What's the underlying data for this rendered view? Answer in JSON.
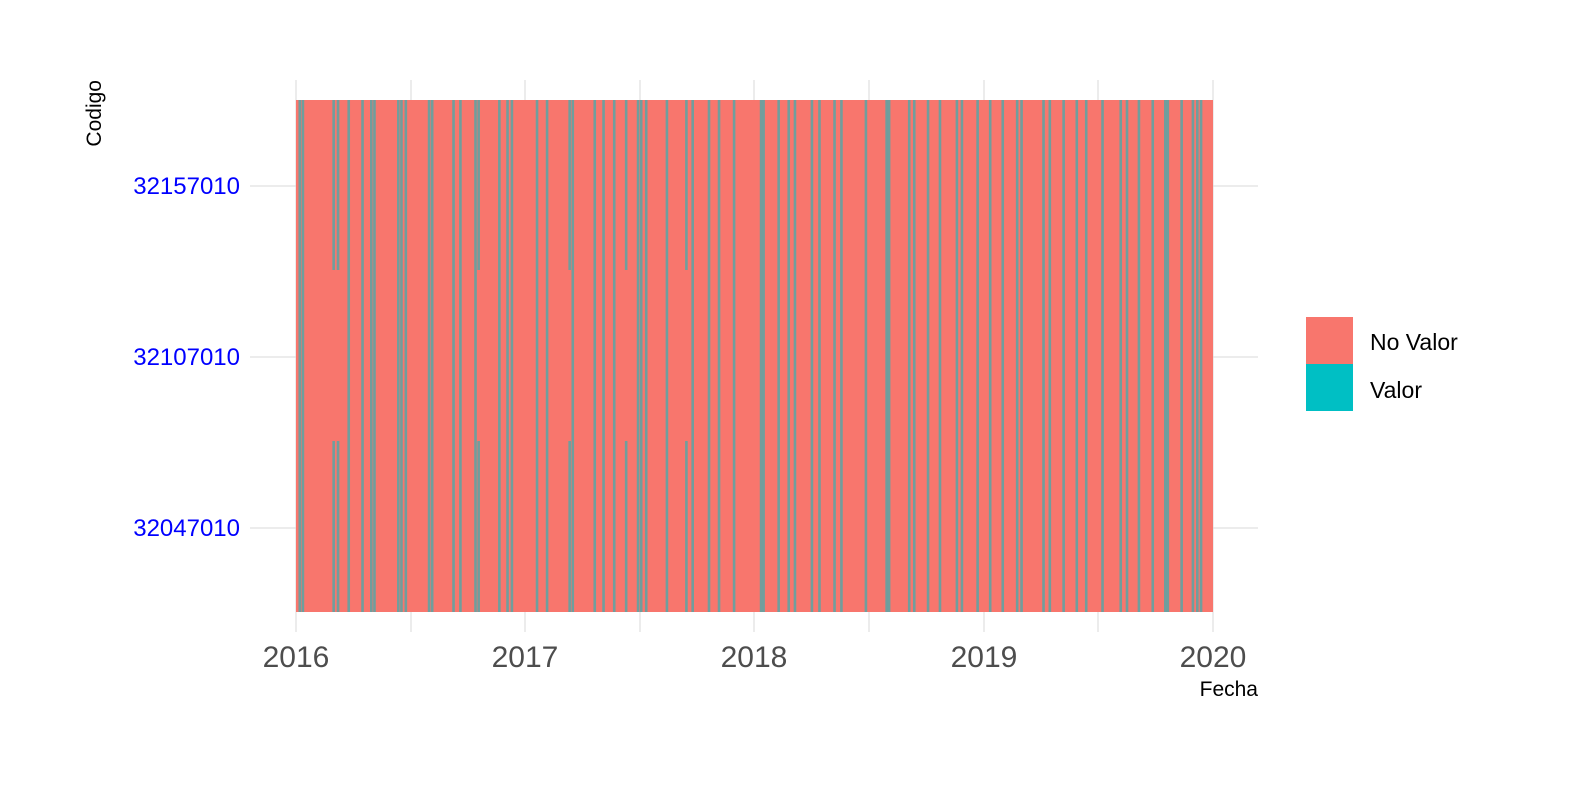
{
  "chart_data": {
    "type": "heatmap",
    "xlabel": "Fecha",
    "ylabel": "Codigo",
    "x_ticks": [
      "2016",
      "2017",
      "2018",
      "2019",
      "2020"
    ],
    "xlim": [
      "2016-01-01",
      "2020-01-01"
    ],
    "categories": [
      "32047010",
      "32107010",
      "32157010"
    ],
    "legend": {
      "position": "right",
      "entries": [
        {
          "label": "No Valor",
          "color": "#F8766D"
        },
        {
          "label": "Valor",
          "color": "#00BFC4"
        }
      ]
    },
    "colors": {
      "missing": "#F8766D",
      "present": "#00BFC4",
      "y_tick_labels": "#0000FF",
      "x_tick_labels": "#4D4D4D",
      "grid": "#D9D9D9"
    },
    "grid": true,
    "present_dates_all_codes": [
      "2016-01-07",
      "2016-01-12",
      "2016-03-25",
      "2016-04-16",
      "2016-04-30",
      "2016-05-05",
      "2016-06-12",
      "2016-06-17",
      "2016-06-24",
      "2016-07-31",
      "2016-08-05",
      "2016-09-08",
      "2016-09-19",
      "2016-10-13",
      "2016-11-20",
      "2016-12-03",
      "2016-12-10",
      "2017-01-19",
      "2017-02-04",
      "2017-03-17",
      "2017-04-21",
      "2017-05-05",
      "2017-05-22",
      "2017-06-29",
      "2017-07-04",
      "2017-07-12",
      "2017-08-14",
      "2017-09-24",
      "2017-10-20",
      "2017-11-05",
      "2017-11-29",
      "2018-01-11",
      "2018-01-15",
      "2018-02-08",
      "2018-02-24",
      "2018-03-06",
      "2018-04-02",
      "2018-04-14",
      "2018-05-08",
      "2018-05-19",
      "2018-06-27",
      "2018-07-30",
      "2018-08-03",
      "2018-09-04",
      "2018-09-12",
      "2018-10-04",
      "2018-10-23",
      "2018-11-19",
      "2018-11-27",
      "2018-12-22",
      "2019-01-11",
      "2019-01-31",
      "2019-02-23",
      "2019-03-02",
      "2019-04-06",
      "2019-04-16",
      "2019-05-08",
      "2019-05-29",
      "2019-06-13",
      "2019-07-09",
      "2019-08-07",
      "2019-08-17",
      "2019-09-05",
      "2019-09-27",
      "2019-10-17",
      "2019-10-21",
      "2019-11-12",
      "2019-11-30",
      "2019-12-07",
      "2019-12-13"
    ],
    "present_dates_32047010_32157010_only": [
      "2016-03-01",
      "2016-03-08",
      "2016-10-18",
      "2017-03-12",
      "2017-06-10",
      "2017-09-14"
    ]
  }
}
